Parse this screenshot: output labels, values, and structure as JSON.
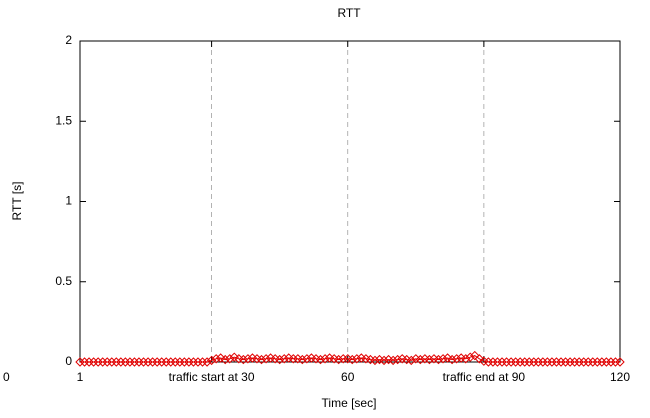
{
  "chart_data": {
    "type": "linespoints",
    "title": "RTT",
    "xlabel": "Time [sec]",
    "ylabel": "RTT [s]",
    "annotations": [
      "0"
    ],
    "xlim": [
      1,
      120
    ],
    "ylim": [
      0,
      2
    ],
    "xticks": [
      1,
      {
        "value": 30,
        "label": "traffic start at 30"
      },
      60,
      {
        "value": 90,
        "label": "traffic end at 90"
      },
      120
    ],
    "yticks": [
      0,
      0.5,
      1,
      1.5,
      2
    ],
    "grid": "x",
    "series": [
      {
        "name": "RTT",
        "color": "#e00000",
        "x": [
          1,
          2,
          3,
          4,
          5,
          6,
          7,
          8,
          9,
          10,
          11,
          12,
          13,
          14,
          15,
          16,
          17,
          18,
          19,
          20,
          21,
          22,
          23,
          24,
          25,
          26,
          27,
          28,
          29,
          30,
          31,
          32,
          33,
          34,
          35,
          36,
          37,
          38,
          39,
          40,
          41,
          42,
          43,
          44,
          45,
          46,
          47,
          48,
          49,
          50,
          51,
          52,
          53,
          54,
          55,
          56,
          57,
          58,
          59,
          60,
          61,
          62,
          63,
          64,
          65,
          66,
          67,
          68,
          69,
          70,
          71,
          72,
          73,
          74,
          75,
          76,
          77,
          78,
          79,
          80,
          81,
          82,
          83,
          84,
          85,
          86,
          87,
          88,
          89,
          90,
          91,
          92,
          93,
          94,
          95,
          96,
          97,
          98,
          99,
          100,
          101,
          102,
          103,
          104,
          105,
          106,
          107,
          108,
          109,
          110,
          111,
          112,
          113,
          114,
          115,
          116,
          117,
          118,
          119,
          120
        ],
        "values": [
          0,
          0,
          0,
          0,
          0,
          0,
          0,
          0,
          0,
          0,
          0,
          0,
          0,
          0,
          0,
          0,
          0,
          0,
          0,
          0,
          0,
          0,
          0,
          0,
          0,
          0,
          0,
          0,
          0,
          0.01,
          0.02,
          0.025,
          0.015,
          0.02,
          0.03,
          0.02,
          0.015,
          0.02,
          0.025,
          0.02,
          0.015,
          0.02,
          0.025,
          0.02,
          0.015,
          0.02,
          0.025,
          0.02,
          0.02,
          0.015,
          0.02,
          0.025,
          0.02,
          0.015,
          0.02,
          0.025,
          0.02,
          0.015,
          0.02,
          0.02,
          0.015,
          0.02,
          0.025,
          0.02,
          0.015,
          0.01,
          0.015,
          0.01,
          0.015,
          0.01,
          0.015,
          0.02,
          0.015,
          0.01,
          0.02,
          0.015,
          0.02,
          0.015,
          0.02,
          0.015,
          0.02,
          0.025,
          0.015,
          0.02,
          0.025,
          0.02,
          0.03,
          0.04,
          0.02,
          0.005,
          0,
          0,
          0,
          0,
          0,
          0,
          0,
          0,
          0,
          0,
          0,
          0,
          0,
          0,
          0,
          0,
          0,
          0,
          0,
          0,
          0,
          0,
          0,
          0,
          0,
          0,
          0,
          0,
          0,
          0
        ]
      }
    ]
  }
}
